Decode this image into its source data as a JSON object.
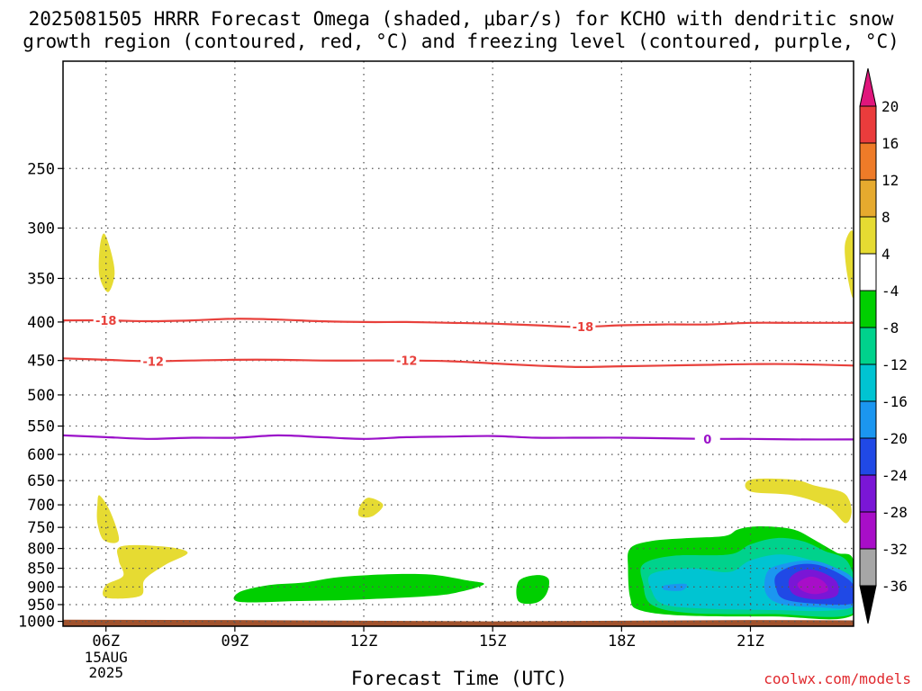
{
  "title": {
    "line1": "2025081505 HRRR Forecast Omega (shaded, μbar/s) for KCHO with dendritic snow",
    "line2": "growth region (contoured, red, °C) and freezing level (contoured, purple, °C)"
  },
  "credit": "coolwx.com/models",
  "colors": {
    "ground": "#a0522d",
    "isotherm_red": "#e8413c",
    "freezing_purple": "#9b11c9",
    "grid": "#555555"
  },
  "chart_data": {
    "type": "heatmap",
    "xlabel": "Forecast Time (UTC)",
    "ylabel": "",
    "x_ticks": [
      {
        "label": "06Z",
        "hour": 6
      },
      {
        "label": "09Z",
        "hour": 9
      },
      {
        "label": "12Z",
        "hour": 12
      },
      {
        "label": "15Z",
        "hour": 15
      },
      {
        "label": "18Z",
        "hour": 18
      },
      {
        "label": "21Z",
        "hour": 21
      }
    ],
    "x_date_label": [
      "15AUG",
      "2025"
    ],
    "xlim_hours": [
      5,
      23.4
    ],
    "y_ticks": [
      250,
      300,
      350,
      400,
      450,
      500,
      550,
      600,
      650,
      700,
      750,
      800,
      850,
      900,
      950,
      1000
    ],
    "ylim_hPa": [
      1015,
      180
    ],
    "y_scale": "log",
    "grid": true,
    "colorbar": {
      "unit": "μbar/s",
      "labels": [
        "20",
        "16",
        "12",
        "8",
        "4",
        "-4",
        "-8",
        "-12",
        "-16",
        "-20",
        "-24",
        "-28",
        "-32",
        "-36"
      ],
      "bins": [
        {
          "min": 20,
          "max": null,
          "color": "#e0167c"
        },
        {
          "min": 16,
          "max": 20,
          "color": "#ea3c3c"
        },
        {
          "min": 12,
          "max": 16,
          "color": "#ee7b28"
        },
        {
          "min": 8,
          "max": 12,
          "color": "#e6aa2e"
        },
        {
          "min": 4,
          "max": 8,
          "color": "#e6db32"
        },
        {
          "min": -4,
          "max": 4,
          "color": "#ffffff"
        },
        {
          "min": -8,
          "max": -4,
          "color": "#00cf00"
        },
        {
          "min": -12,
          "max": -8,
          "color": "#00d28c"
        },
        {
          "min": -16,
          "max": -12,
          "color": "#00c4d2"
        },
        {
          "min": -20,
          "max": -16,
          "color": "#1b96f0"
        },
        {
          "min": -24,
          "max": -20,
          "color": "#2049e6"
        },
        {
          "min": -28,
          "max": -24,
          "color": "#7a16d6"
        },
        {
          "min": -32,
          "max": -28,
          "color": "#a80ec8"
        },
        {
          "min": -36,
          "max": -32,
          "color": "#a6a6a6"
        },
        {
          "min": null,
          "max": -36,
          "color": "#000000"
        }
      ]
    },
    "contours": [
      {
        "level": "-18",
        "color": "#e8413c",
        "points": [
          [
            5,
            398
          ],
          [
            6,
            398
          ],
          [
            7,
            399
          ],
          [
            8,
            398
          ],
          [
            9,
            396
          ],
          [
            10,
            397
          ],
          [
            11,
            399
          ],
          [
            12,
            400
          ],
          [
            13,
            400
          ],
          [
            14,
            401
          ],
          [
            15,
            402
          ],
          [
            16,
            404
          ],
          [
            17,
            406
          ],
          [
            18,
            404
          ],
          [
            19,
            403
          ],
          [
            20,
            403
          ],
          [
            21,
            401
          ],
          [
            22,
            401
          ],
          [
            23.4,
            401
          ]
        ],
        "labels_at": [
          6,
          17.1
        ]
      },
      {
        "level": "-12",
        "color": "#e8413c",
        "points": [
          [
            5,
            447
          ],
          [
            6,
            449
          ],
          [
            7,
            451
          ],
          [
            8,
            450
          ],
          [
            9,
            449
          ],
          [
            10,
            449
          ],
          [
            11,
            450
          ],
          [
            12,
            450
          ],
          [
            13,
            450
          ],
          [
            14,
            451
          ],
          [
            15,
            454
          ],
          [
            16,
            457
          ],
          [
            17,
            459
          ],
          [
            18,
            458
          ],
          [
            19,
            457
          ],
          [
            20,
            456
          ],
          [
            21,
            455
          ],
          [
            22,
            455
          ],
          [
            23.4,
            457
          ]
        ],
        "labels_at": [
          7.1,
          13
        ]
      },
      {
        "level": "0",
        "color": "#9b11c9",
        "points": [
          [
            5,
            566
          ],
          [
            6,
            569
          ],
          [
            7,
            572
          ],
          [
            8,
            570
          ],
          [
            9,
            570
          ],
          [
            10,
            566
          ],
          [
            11,
            569
          ],
          [
            12,
            572
          ],
          [
            13,
            569
          ],
          [
            14,
            568
          ],
          [
            15,
            567
          ],
          [
            16,
            570
          ],
          [
            17,
            570
          ],
          [
            18,
            570
          ],
          [
            19,
            571
          ],
          [
            20,
            572
          ],
          [
            21,
            572
          ],
          [
            22,
            573
          ],
          [
            23.4,
            573
          ]
        ],
        "labels_at": [
          20
        ]
      }
    ],
    "omega_regions": [
      {
        "bin": "4 to 8",
        "color": "#e6db32",
        "points": [
          [
            5.85,
            320
          ],
          [
            5.95,
            305
          ],
          [
            6.1,
            320
          ],
          [
            6.2,
            345
          ],
          [
            6.05,
            365
          ],
          [
            5.85,
            348
          ]
        ]
      },
      {
        "bin": "4 to 8",
        "color": "#e6db32",
        "points": [
          [
            23.2,
            315
          ],
          [
            23.4,
            305
          ],
          [
            23.4,
            370
          ],
          [
            23.25,
            345
          ]
        ]
      },
      {
        "bin": "4 to 8",
        "color": "#e6db32",
        "points": [
          [
            5.8,
            700
          ],
          [
            5.85,
            680
          ],
          [
            6.1,
            715
          ],
          [
            6.3,
            780
          ],
          [
            5.95,
            780
          ],
          [
            5.8,
            740
          ]
        ]
      },
      {
        "bin": "4 to 8",
        "color": "#e6db32",
        "points": [
          [
            6.35,
            795
          ],
          [
            7.3,
            795
          ],
          [
            7.9,
            810
          ],
          [
            7.4,
            840
          ],
          [
            6.9,
            880
          ],
          [
            6.8,
            925
          ],
          [
            6.0,
            930
          ],
          [
            6.0,
            895
          ],
          [
            6.4,
            870
          ],
          [
            6.3,
            830
          ]
        ]
      },
      {
        "bin": "4 to 8",
        "color": "#e6db32",
        "points": [
          [
            11.9,
            705
          ],
          [
            12.1,
            685
          ],
          [
            12.45,
            700
          ],
          [
            12.2,
            725
          ],
          [
            11.9,
            725
          ]
        ]
      },
      {
        "bin": "4 to 8",
        "color": "#e6db32",
        "points": [
          [
            21.0,
            648
          ],
          [
            22.0,
            648
          ],
          [
            22.5,
            660
          ],
          [
            23.1,
            672
          ],
          [
            23.3,
            690
          ],
          [
            23.35,
            720
          ],
          [
            23.2,
            740
          ],
          [
            22.8,
            705
          ],
          [
            22.0,
            680
          ],
          [
            21.0,
            672
          ]
        ]
      },
      {
        "bin": "-4 to -8",
        "color": "#00cf00",
        "points": [
          [
            9.1,
            915
          ],
          [
            9.8,
            895
          ],
          [
            10.6,
            888
          ],
          [
            11.3,
            875
          ],
          [
            12.1,
            868
          ],
          [
            13.0,
            865
          ],
          [
            13.7,
            868
          ],
          [
            14.4,
            882
          ],
          [
            14.8,
            892
          ],
          [
            14.3,
            912
          ],
          [
            13.6,
            925
          ],
          [
            12.0,
            935
          ],
          [
            10.4,
            940
          ],
          [
            9.1,
            942
          ]
        ]
      },
      {
        "bin": "-4 to -8",
        "color": "#00cf00",
        "points": [
          [
            15.6,
            885
          ],
          [
            16.0,
            868
          ],
          [
            16.3,
            878
          ],
          [
            16.25,
            920
          ],
          [
            16.0,
            945
          ],
          [
            15.6,
            940
          ]
        ]
      },
      {
        "bin": "-4 to -8",
        "color": "#00cf00",
        "points": [
          [
            18.2,
            800
          ],
          [
            18.7,
            782
          ],
          [
            19.5,
            775
          ],
          [
            20.4,
            770
          ],
          [
            20.7,
            755
          ],
          [
            21.1,
            748
          ],
          [
            21.7,
            750
          ],
          [
            22.1,
            758
          ],
          [
            22.5,
            780
          ],
          [
            23.0,
            810
          ],
          [
            23.4,
            830
          ],
          [
            23.4,
            980
          ],
          [
            21.5,
            985
          ],
          [
            19.4,
            982
          ],
          [
            18.4,
            965
          ],
          [
            18.2,
            930
          ],
          [
            18.15,
            850
          ]
        ]
      },
      {
        "bin": "-8 to -12",
        "color": "#00d28c",
        "points": [
          [
            18.5,
            840
          ],
          [
            19.2,
            818
          ],
          [
            20.5,
            815
          ],
          [
            21.0,
            790
          ],
          [
            21.6,
            775
          ],
          [
            22.2,
            782
          ],
          [
            22.7,
            805
          ],
          [
            23.3,
            840
          ],
          [
            23.4,
            975
          ],
          [
            21.5,
            978
          ],
          [
            19.6,
            975
          ],
          [
            18.7,
            950
          ],
          [
            18.5,
            890
          ]
        ]
      },
      {
        "bin": "-12 to -16",
        "color": "#00c4d2",
        "points": [
          [
            18.7,
            865
          ],
          [
            19.6,
            850
          ],
          [
            20.5,
            860
          ],
          [
            21.0,
            830
          ],
          [
            21.7,
            815
          ],
          [
            22.5,
            832
          ],
          [
            23.2,
            870
          ],
          [
            23.4,
            950
          ],
          [
            22.8,
            968
          ],
          [
            21.5,
            966
          ],
          [
            20.0,
            962
          ],
          [
            19.0,
            950
          ],
          [
            18.7,
            910
          ]
        ]
      },
      {
        "bin": "-16 to -20",
        "color": "#1b96f0",
        "points": [
          [
            19.0,
            896
          ],
          [
            19.5,
            892
          ],
          [
            19.4,
            910
          ],
          [
            19.0,
            908
          ]
        ]
      },
      {
        "bin": "-16 to -20",
        "color": "#1b96f0",
        "points": [
          [
            21.4,
            858
          ],
          [
            21.8,
            838
          ],
          [
            22.4,
            830
          ],
          [
            22.9,
            845
          ],
          [
            23.4,
            880
          ],
          [
            23.4,
            955
          ],
          [
            22.6,
            958
          ],
          [
            21.7,
            948
          ],
          [
            21.35,
            915
          ]
        ]
      },
      {
        "bin": "-20 to -24",
        "color": "#2049e6",
        "points": [
          [
            21.6,
            868
          ],
          [
            22.0,
            843
          ],
          [
            22.5,
            840
          ],
          [
            23.0,
            860
          ],
          [
            23.4,
            895
          ],
          [
            23.4,
            945
          ],
          [
            22.6,
            948
          ],
          [
            21.8,
            935
          ],
          [
            21.6,
            905
          ]
        ]
      },
      {
        "bin": "-24 to -28",
        "color": "#7a16d6",
        "points": [
          [
            21.9,
            880
          ],
          [
            22.2,
            855
          ],
          [
            22.6,
            858
          ],
          [
            23.0,
            885
          ],
          [
            23.0,
            925
          ],
          [
            22.5,
            935
          ],
          [
            22.0,
            920
          ]
        ]
      },
      {
        "bin": "-28 to -32",
        "color": "#a80ec8",
        "points": [
          [
            22.1,
            890
          ],
          [
            22.4,
            872
          ],
          [
            22.7,
            885
          ],
          [
            22.8,
            910
          ],
          [
            22.5,
            920
          ],
          [
            22.2,
            910
          ]
        ]
      }
    ],
    "ground_hPa": [
      [
        5,
        995
      ],
      [
        9,
        996
      ],
      [
        12,
        998
      ],
      [
        15,
        1000
      ],
      [
        18,
        998
      ],
      [
        21,
        996
      ],
      [
        23.4,
        997
      ]
    ]
  }
}
